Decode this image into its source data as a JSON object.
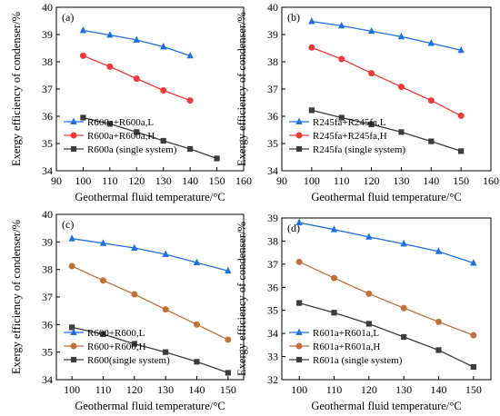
{
  "chart_data": [
    {
      "type": "line",
      "panel_label": "(a)",
      "xlabel": "Geothermal fluid temperature/°C",
      "ylabel": "Exergy efficiency of condenser/%",
      "xlim": [
        90,
        160
      ],
      "ylim": [
        34,
        40
      ],
      "xticks": [
        90,
        100,
        110,
        120,
        130,
        140,
        150,
        160
      ],
      "yticks": [
        34,
        35,
        36,
        37,
        38,
        39,
        40
      ],
      "legend_position": "bottom-left",
      "series": [
        {
          "name": "R600a+R600a,L",
          "color": "#1f6fe0",
          "marker": "triangle",
          "x": [
            100,
            110,
            120,
            130,
            140
          ],
          "y": [
            39.15,
            38.98,
            38.8,
            38.55,
            38.22
          ]
        },
        {
          "name": "R600a+R600a,H",
          "color": "#f03a3a",
          "marker": "circle",
          "x": [
            100,
            110,
            120,
            130,
            140
          ],
          "y": [
            38.22,
            37.82,
            37.38,
            36.95,
            36.58
          ]
        },
        {
          "name": "R600a (single system)",
          "color": "#3c3c3c",
          "marker": "square",
          "x": [
            100,
            110,
            120,
            130,
            140,
            150
          ],
          "y": [
            35.95,
            35.72,
            35.42,
            35.1,
            34.8,
            34.45
          ]
        }
      ]
    },
    {
      "type": "line",
      "panel_label": "(b)",
      "xlabel": "Geothermal fluid temperature/°C",
      "ylabel": "Exergy efficiency of condenser/%",
      "xlim": [
        90,
        160
      ],
      "ylim": [
        34,
        40
      ],
      "xticks": [
        90,
        100,
        110,
        120,
        130,
        140,
        150,
        160
      ],
      "yticks": [
        34,
        35,
        36,
        37,
        38,
        39,
        40
      ],
      "legend_position": "bottom-left",
      "series": [
        {
          "name": "R245fa+R245fa,L",
          "color": "#1f6fe0",
          "marker": "triangle",
          "x": [
            100,
            110,
            120,
            130,
            140,
            150
          ],
          "y": [
            39.48,
            39.32,
            39.12,
            38.92,
            38.68,
            38.42
          ]
        },
        {
          "name": "R245fa+R245fa,H",
          "color": "#f03a3a",
          "marker": "circle",
          "x": [
            100,
            110,
            120,
            130,
            140,
            150
          ],
          "y": [
            38.52,
            38.1,
            37.58,
            37.08,
            36.58,
            36.02
          ]
        },
        {
          "name": "R245fa (single system)",
          "color": "#3c3c3c",
          "marker": "square",
          "x": [
            100,
            110,
            120,
            130,
            140,
            150
          ],
          "y": [
            36.22,
            35.95,
            35.7,
            35.42,
            35.08,
            34.72
          ]
        }
      ]
    },
    {
      "type": "line",
      "panel_label": "(c)",
      "xlabel": "Geothermal fluid temperature/°C",
      "ylabel": "Exergy efficiency of condenser/%",
      "xlim": [
        95,
        155
      ],
      "ylim": [
        34,
        40
      ],
      "xticks": [
        100,
        110,
        120,
        130,
        140,
        150
      ],
      "yticks": [
        34,
        35,
        36,
        37,
        38,
        39,
        40
      ],
      "legend_position": "bottom-left",
      "series": [
        {
          "name": "R600+R600,L",
          "color": "#1f6fe0",
          "marker": "triangle",
          "x": [
            100,
            110,
            120,
            130,
            140,
            150
          ],
          "y": [
            39.12,
            38.95,
            38.78,
            38.55,
            38.25,
            37.95
          ]
        },
        {
          "name": "R600+R600,H",
          "color": "#c0703a",
          "marker": "circle",
          "x": [
            100,
            110,
            120,
            130,
            140,
            150
          ],
          "y": [
            38.12,
            37.6,
            37.1,
            36.55,
            36.0,
            35.45
          ]
        },
        {
          "name": "R600(single system)",
          "color": "#3c3c3c",
          "marker": "square",
          "x": [
            100,
            110,
            120,
            130,
            140,
            150
          ],
          "y": [
            35.9,
            35.65,
            35.3,
            35.0,
            34.65,
            34.25
          ]
        }
      ]
    },
    {
      "type": "line",
      "panel_label": "(d)",
      "xlabel": "Geothermal fluid temperature/°C",
      "ylabel": "Exergy efficiency of condenser/%",
      "xlim": [
        95,
        155
      ],
      "ylim": [
        32,
        39
      ],
      "xticks": [
        100,
        110,
        120,
        130,
        140,
        150
      ],
      "yticks": [
        32,
        33,
        34,
        35,
        36,
        37,
        38,
        39
      ],
      "legend_position": "bottom-left",
      "series": [
        {
          "name": "R601a+R601a,L",
          "color": "#1f6fe0",
          "marker": "triangle",
          "x": [
            100,
            110,
            120,
            130,
            140,
            150
          ],
          "y": [
            38.8,
            38.5,
            38.18,
            37.88,
            37.55,
            37.05
          ]
        },
        {
          "name": "R601a+R601a,H",
          "color": "#c0703a",
          "marker": "circle",
          "x": [
            100,
            110,
            120,
            130,
            140,
            150
          ],
          "y": [
            37.1,
            36.4,
            35.72,
            35.1,
            34.5,
            33.92
          ]
        },
        {
          "name": "R601a (single system)",
          "color": "#3c3c3c",
          "marker": "square",
          "x": [
            100,
            110,
            120,
            130,
            140,
            150
          ],
          "y": [
            35.32,
            34.9,
            34.42,
            33.85,
            33.28,
            32.55
          ]
        }
      ]
    }
  ]
}
